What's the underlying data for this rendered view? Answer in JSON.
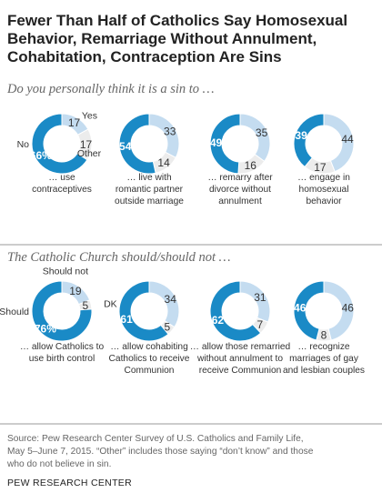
{
  "title_lines": [
    "Fewer Than Half of Catholics Say Homosexual",
    "Behavior, Remarriage Without Annulment,",
    "Cohabitation, Contraception Are Sins"
  ],
  "source_lines": [
    "Source: Pew Research Center Survey of U.S. Catholics and Family Life,",
    "May 5–June 7, 2015. “Other” includes those saying “don’t know” and those",
    "who do not believe in sin."
  ],
  "brand": "PEW RESEARCH CENTER",
  "colors": {
    "dark": "#1a8ac6",
    "light": "#c4dcf0",
    "grey": "#ececec",
    "rule": "#9a9a9a"
  },
  "chart_data": [
    {
      "type": "pie",
      "question": "Do you personally think it is a sin to …",
      "legend": {
        "dark": "No",
        "light": "Yes",
        "grey": "Other"
      },
      "donuts": [
        {
          "caption": [
            "… use",
            "contraceptives"
          ],
          "values": [
            66,
            17,
            17
          ]
        },
        {
          "caption": [
            "… live with",
            "romantic partner",
            "outside marriage"
          ],
          "values": [
            54,
            33,
            14
          ]
        },
        {
          "caption": [
            "… remarry after",
            "divorce without",
            "annulment"
          ],
          "values": [
            49,
            35,
            16
          ]
        },
        {
          "caption": [
            "… engage in",
            "homosexual",
            "behavior"
          ],
          "values": [
            39,
            44,
            17
          ]
        }
      ]
    },
    {
      "type": "pie",
      "question": "The Catholic Church should/should not …",
      "legend": {
        "dark": "Should",
        "light": "Should not",
        "grey": "DK"
      },
      "donuts": [
        {
          "caption": [
            "… allow Catholics to",
            "use birth control"
          ],
          "values": [
            76,
            19,
            5
          ]
        },
        {
          "caption": [
            "… allow cohabiting",
            "Catholics to receive",
            "Communion"
          ],
          "values": [
            61,
            34,
            5
          ]
        },
        {
          "caption": [
            "… allow those remarried",
            "without annulment to",
            "receive Communion"
          ],
          "values": [
            62,
            31,
            7
          ]
        },
        {
          "caption": [
            "… recognize",
            "marriages of gay",
            "and lesbian couples"
          ],
          "values": [
            46,
            46,
            8
          ]
        }
      ]
    }
  ]
}
